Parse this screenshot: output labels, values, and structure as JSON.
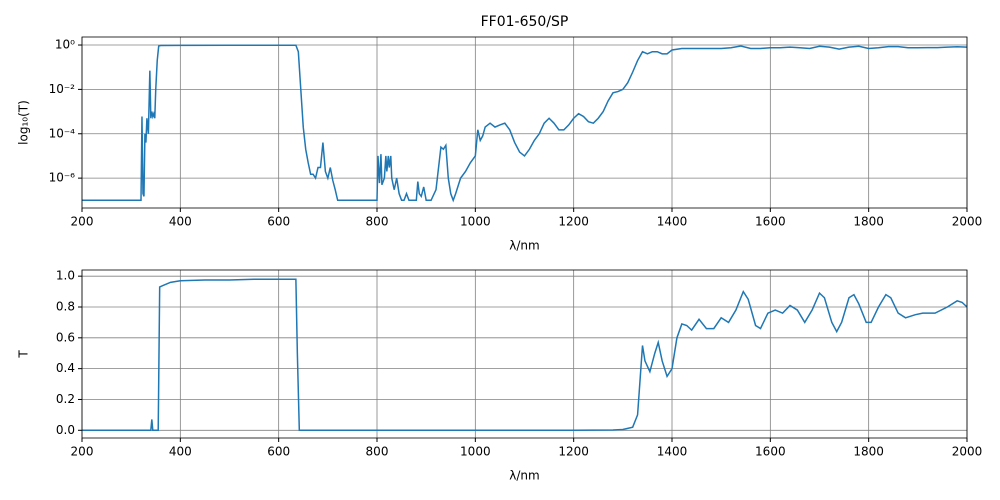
{
  "chart_data": [
    {
      "type": "line",
      "title": "FF01-650/SP",
      "xlabel": "λ/nm",
      "ylabel": "log₁₀(T)",
      "yscale": "log",
      "grid": true,
      "xlim": [
        200,
        2000
      ],
      "ylim": [
        4.5e-08,
        2.3
      ],
      "xticks": [
        200,
        400,
        600,
        800,
        1000,
        1200,
        1400,
        1600,
        1800,
        2000
      ],
      "yticks": [
        {
          "value": 1e-06,
          "label": "10⁻⁶"
        },
        {
          "value": 0.0001,
          "label": "10⁻⁴"
        },
        {
          "value": 0.01,
          "label": "10⁻²"
        },
        {
          "value": 1,
          "label": "10⁰"
        }
      ],
      "x": [
        200,
        320,
        322,
        324,
        326,
        328,
        330,
        332,
        335,
        338,
        340,
        342,
        344,
        346,
        348,
        350,
        353,
        356,
        360,
        400,
        500,
        600,
        635,
        640,
        645,
        650,
        655,
        660,
        665,
        670,
        675,
        680,
        685,
        690,
        695,
        700,
        705,
        710,
        715,
        720,
        800,
        802,
        805,
        808,
        810,
        815,
        818,
        820,
        823,
        825,
        828,
        830,
        835,
        840,
        845,
        850,
        855,
        860,
        865,
        870,
        880,
        883,
        886,
        890,
        895,
        900,
        905,
        910,
        920,
        930,
        935,
        940,
        945,
        950,
        955,
        960,
        970,
        980,
        990,
        1000,
        1005,
        1010,
        1015,
        1020,
        1030,
        1040,
        1050,
        1060,
        1070,
        1080,
        1090,
        1100,
        1110,
        1120,
        1130,
        1140,
        1150,
        1160,
        1170,
        1180,
        1190,
        1200,
        1210,
        1220,
        1230,
        1240,
        1250,
        1260,
        1270,
        1280,
        1290,
        1300,
        1310,
        1320,
        1330,
        1340,
        1350,
        1360,
        1370,
        1380,
        1390,
        1400,
        1420,
        1450,
        1480,
        1500,
        1520,
        1540,
        1560,
        1580,
        1600,
        1620,
        1640,
        1660,
        1680,
        1700,
        1720,
        1740,
        1760,
        1780,
        1800,
        1820,
        1840,
        1860,
        1880,
        1900,
        1920,
        1940,
        1960,
        1980,
        2000
      ],
      "series": [
        {
          "color": "#1f77b4",
          "values": [
            1e-07,
            1e-07,
            0.0006,
            2e-07,
            1.5e-07,
            0.0001,
            4e-05,
            0.0005,
            0.0001,
            0.07,
            0.0005,
            0.001,
            0.0006,
            0.0008,
            0.0005,
            0.01,
            0.2,
            0.9,
            0.95,
            0.97,
            0.98,
            0.98,
            0.98,
            0.5,
            0.01,
            0.0002,
            2e-05,
            5e-06,
            1.5e-06,
            1.5e-06,
            1e-06,
            3e-06,
            3e-06,
            4e-05,
            2e-06,
            1e-06,
            3e-06,
            8e-07,
            3e-07,
            1e-07,
            1e-07,
            1e-05,
            6e-07,
            1.2e-05,
            5e-07,
            1e-06,
            1e-05,
            2e-06,
            1e-05,
            3e-06,
            1e-05,
            1e-06,
            3e-07,
            1e-06,
            2e-07,
            1e-07,
            1e-07,
            2e-07,
            1e-07,
            1e-07,
            1e-07,
            7e-07,
            2e-07,
            1.5e-07,
            4e-07,
            1e-07,
            1e-07,
            1e-07,
            3e-07,
            2.5e-05,
            2e-05,
            3e-05,
            1e-06,
            2e-07,
            1e-07,
            2e-07,
            1e-06,
            2e-06,
            5e-06,
            1e-05,
            0.00015,
            5e-05,
            8e-05,
            0.0002,
            0.0003,
            0.0002,
            0.00025,
            0.0003,
            0.00015,
            4e-05,
            1.5e-05,
            1e-05,
            2e-05,
            5e-05,
            0.0001,
            0.0003,
            0.0005,
            0.0003,
            0.00015,
            0.00015,
            0.00025,
            0.0005,
            0.0008,
            0.0006,
            0.00035,
            0.0003,
            0.0005,
            0.001,
            0.003,
            0.007,
            0.008,
            0.01,
            0.02,
            0.06,
            0.2,
            0.5,
            0.4,
            0.5,
            0.5,
            0.4,
            0.4,
            0.6,
            0.7,
            0.7,
            0.7,
            0.7,
            0.75,
            0.9,
            0.7,
            0.7,
            0.75,
            0.75,
            0.8,
            0.75,
            0.7,
            0.88,
            0.8,
            0.65,
            0.8,
            0.88,
            0.7,
            0.75,
            0.85,
            0.85,
            0.75,
            0.75,
            0.76,
            0.76,
            0.8,
            0.84,
            0.8
          ]
        }
      ]
    },
    {
      "type": "line",
      "xlabel": "λ/nm",
      "ylabel": "T",
      "grid": true,
      "xlim": [
        200,
        2000
      ],
      "ylim": [
        -0.05,
        1.04
      ],
      "xticks": [
        200,
        400,
        600,
        800,
        1000,
        1200,
        1400,
        1600,
        1800,
        2000
      ],
      "yticks": [
        {
          "value": 0,
          "label": "0.0"
        },
        0.2,
        0.4,
        0.6,
        0.8,
        {
          "value": 1,
          "label": "1.0"
        }
      ],
      "x": [
        200,
        340,
        342,
        344,
        355,
        358,
        365,
        380,
        400,
        450,
        500,
        550,
        600,
        635,
        638,
        642,
        700,
        1200,
        1280,
        1300,
        1320,
        1330,
        1340,
        1345,
        1355,
        1365,
        1372,
        1380,
        1390,
        1400,
        1410,
        1420,
        1430,
        1440,
        1455,
        1470,
        1485,
        1500,
        1515,
        1530,
        1545,
        1555,
        1570,
        1580,
        1595,
        1610,
        1625,
        1640,
        1655,
        1670,
        1685,
        1700,
        1710,
        1725,
        1735,
        1745,
        1760,
        1770,
        1780,
        1795,
        1805,
        1820,
        1835,
        1845,
        1860,
        1875,
        1895,
        1910,
        1935,
        1960,
        1980,
        1990,
        2000
      ],
      "series": [
        {
          "color": "#1f77b4",
          "values": [
            0,
            0,
            0.07,
            0,
            0,
            0.93,
            0.94,
            0.96,
            0.97,
            0.975,
            0.975,
            0.98,
            0.98,
            0.98,
            0.5,
            0,
            0,
            0,
            0.002,
            0.005,
            0.02,
            0.1,
            0.55,
            0.45,
            0.38,
            0.5,
            0.57,
            0.45,
            0.35,
            0.4,
            0.6,
            0.69,
            0.68,
            0.65,
            0.72,
            0.66,
            0.66,
            0.73,
            0.7,
            0.78,
            0.9,
            0.85,
            0.68,
            0.66,
            0.76,
            0.78,
            0.76,
            0.81,
            0.78,
            0.7,
            0.78,
            0.89,
            0.86,
            0.7,
            0.64,
            0.7,
            0.86,
            0.88,
            0.82,
            0.7,
            0.7,
            0.8,
            0.88,
            0.86,
            0.76,
            0.73,
            0.75,
            0.76,
            0.76,
            0.8,
            0.84,
            0.83,
            0.8
          ]
        }
      ]
    }
  ]
}
